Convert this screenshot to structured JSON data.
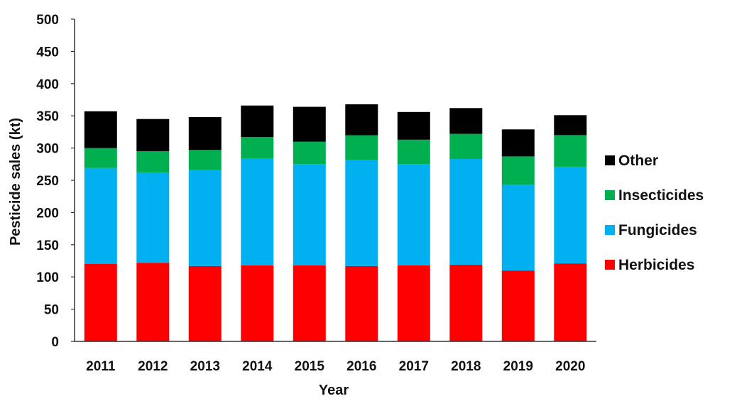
{
  "chart_data": {
    "type": "bar",
    "stacked": true,
    "categories": [
      "2011",
      "2012",
      "2013",
      "2014",
      "2015",
      "2016",
      "2017",
      "2018",
      "2019",
      "2020"
    ],
    "series": [
      {
        "name": "Herbicides",
        "color": "#ff0000",
        "values": [
          120,
          122,
          117,
          118,
          118,
          117,
          118,
          119,
          110,
          121
        ]
      },
      {
        "name": "Fungicides",
        "color": "#00b0f0",
        "values": [
          149,
          140,
          149,
          166,
          157,
          164,
          157,
          164,
          133,
          150
        ]
      },
      {
        "name": "Insecticides",
        "color": "#00b050",
        "values": [
          31,
          33,
          31,
          33,
          35,
          39,
          38,
          39,
          44,
          49
        ]
      },
      {
        "name": "Other",
        "color": "#000000",
        "values": [
          57,
          50,
          51,
          49,
          54,
          48,
          43,
          40,
          42,
          31
        ]
      }
    ],
    "legend_order": [
      "Other",
      "Insecticides",
      "Fungicides",
      "Herbicides"
    ],
    "legend_position": "right",
    "xlabel": "Year",
    "ylabel": "Pesticide sales (kt)",
    "ylim": [
      0,
      500
    ],
    "yticks": [
      0,
      50,
      100,
      150,
      200,
      250,
      300,
      350,
      400,
      450,
      500
    ],
    "grid": false
  }
}
